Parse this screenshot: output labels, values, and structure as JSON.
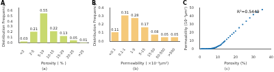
{
  "chart_data": [
    {
      "type": "bar",
      "title": "A",
      "subtitle": "(a)",
      "xlabel": "Porosity ( % )",
      "ylabel": "Distribution Frequency",
      "categories": [
        "<2",
        "2-5",
        "5-10",
        "10-15",
        "15-20",
        "20-25",
        ">25"
      ],
      "values": [
        0.03,
        0.21,
        0.55,
        0.22,
        0.13,
        0.05,
        0.01
      ],
      "color": "#c8d96f",
      "ylim": [
        0,
        0.65
      ],
      "yticks": [
        {
          "value": 0.0,
          "label": "0.0"
        },
        0.1,
        0.2,
        0.3,
        0.4,
        0.5,
        0.6
      ],
      "data_labels": true,
      "grid": false
    },
    {
      "type": "bar",
      "title": "B",
      "subtitle": "(b)",
      "xlabel": "Permeability ( ×10⁻³μm²)",
      "ylabel": "Distribution Frequency",
      "categories": [
        "<0.1",
        "0.1-1",
        "1-5",
        "5-15",
        "15-50",
        "50-500",
        ">500"
      ],
      "values": [
        0.11,
        0.31,
        0.28,
        0.17,
        0.08,
        0.05,
        0.05
      ],
      "color": "#f5c97a",
      "ylim": [
        0,
        0.4
      ],
      "yticks": [
        {
          "value": 0.0,
          "label": "0.0"
        },
        0.1,
        0.2,
        0.3,
        0.4
      ],
      "data_labels": true,
      "grid": false
    },
    {
      "type": "scatter",
      "title": "C",
      "subtitle": "(c)",
      "xlabel": "Porosity (%)",
      "ylabel": "Permeability (10⁻³μm²)",
      "annotations": [
        "R²=0.5449"
      ],
      "color": "#1a6faf",
      "marker": "square",
      "xlim": [
        0,
        40
      ],
      "ylim": [
        0,
        50
      ],
      "xticks": [
        0,
        10,
        20,
        30,
        40
      ],
      "yticks": [
        0,
        10,
        20,
        30,
        40,
        50
      ],
      "x": [
        0.3,
        0.5,
        0.6,
        0.8,
        0.9,
        1.0,
        1.1,
        1.2,
        1.3,
        1.4,
        1.5,
        1.6,
        1.7,
        1.8,
        1.9,
        2.0,
        2.1,
        2.2,
        2.3,
        2.4,
        2.5,
        2.6,
        2.7,
        2.8,
        3.0,
        3.2,
        3.4,
        3.6,
        3.8,
        4.0,
        4.2,
        4.5,
        4.8,
        5.0,
        5.2,
        5.5,
        5.8,
        6.0,
        6.3,
        6.6,
        7.0,
        7.3,
        7.6,
        8.0,
        8.3,
        8.6,
        9.0,
        9.3,
        9.6,
        10.0,
        10.5,
        11.0,
        11.5,
        12.0,
        12.5,
        13.0,
        13.5,
        14.0,
        15.0,
        16.0,
        17.0,
        18.0,
        19.0,
        20.0,
        22.0,
        24.0,
        26.0,
        28.0,
        30.0,
        32.0,
        35.0
      ],
      "y": [
        0.02,
        0.02,
        0.03,
        0.03,
        0.04,
        0.04,
        0.05,
        0.05,
        0.06,
        0.06,
        0.07,
        0.07,
        0.08,
        0.08,
        0.09,
        0.09,
        0.1,
        0.1,
        0.12,
        0.12,
        0.15,
        0.15,
        0.18,
        0.18,
        0.2,
        0.22,
        0.25,
        0.28,
        0.3,
        0.35,
        0.35,
        0.4,
        0.45,
        0.5,
        0.55,
        0.6,
        0.65,
        0.7,
        0.8,
        0.9,
        1.0,
        1.1,
        1.3,
        1.5,
        1.7,
        2.0,
        2.2,
        2.5,
        3.0,
        3.5,
        4.0,
        4.5,
        5.0,
        6.0,
        7.0,
        8.0,
        9.0,
        10.0,
        12.0,
        14.0,
        16.0,
        18.0,
        20.0,
        22.0,
        26.0,
        30.0,
        34.0,
        38.0,
        42.0,
        45.0,
        48.0
      ],
      "grid": false
    }
  ]
}
